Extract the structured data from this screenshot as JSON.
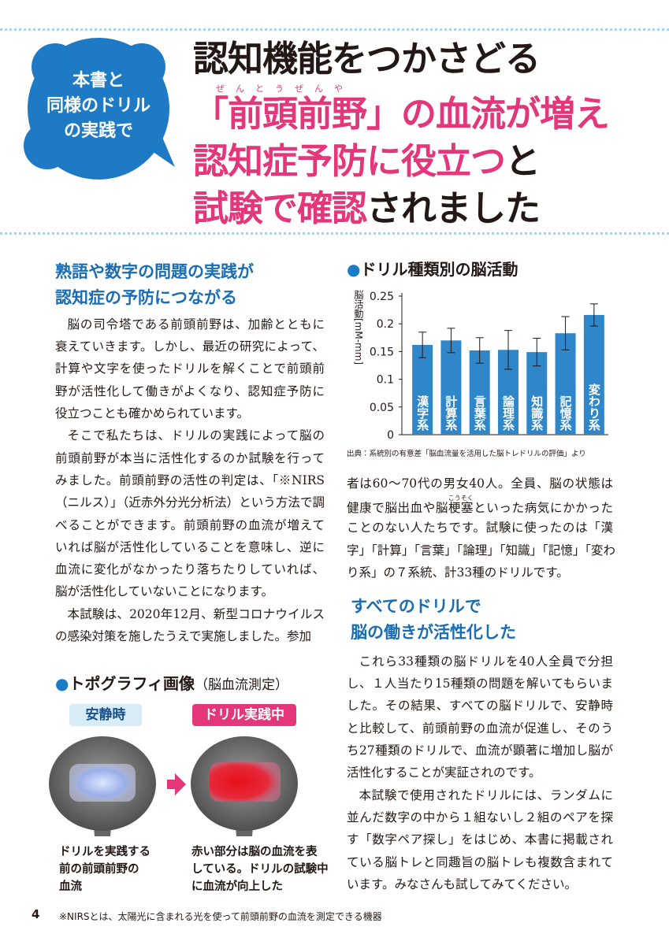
{
  "badge": {
    "lines": [
      "本書と",
      "同様のドリル",
      "の実践で"
    ]
  },
  "title": {
    "lines": [
      [
        {
          "text": "認知機能をつかさどる",
          "color": "#231815"
        }
      ],
      [
        {
          "text": "「前頭前野」の血流が増え",
          "color": "#e4367a"
        }
      ],
      [
        {
          "text": "認知症予防に役立つ",
          "color": "#e4367a"
        },
        {
          "text": "と",
          "color": "#231815"
        }
      ],
      [
        {
          "text": "試験で確認",
          "color": "#e4367a"
        },
        {
          "text": "されました",
          "color": "#231815"
        }
      ]
    ],
    "ruby": "ぜんとうぜんや"
  },
  "section1": {
    "heading": [
      "熟語や数字の問題の実践が",
      "認知症の予防につながる"
    ],
    "paragraphs": [
      [
        "脳の司令塔である前頭前野は、加齢とともに",
        "衰えていきます。しかし、最近の研究によって、",
        "計算や文字を使ったドリルを解くことで前頭前",
        "野が活性化して働きがよくなり、認知症予防に",
        "役立つことも確かめられています。"
      ],
      [
        "そこで私たちは、ドリルの実践によって脳の",
        "前頭前野が本当に活性化するのか試験を行って",
        "みました。前頭前野の活性の判定は、「※NIRS",
        "（ニルス）」（近赤外分光分析法）という方法で調",
        "べることができます。前頭前野の血流が増えて",
        "いれば脳が活性化していることを意味し、逆に",
        "血流に変化がなかったり落ちたりしていれば、",
        "脳が活性化していないことになります。"
      ],
      [
        "本試験は、2020年12月、新型コロナウイルス",
        "の感染対策を施したうえで実施しました。参加"
      ]
    ]
  },
  "chart_data": {
    "type": "bar",
    "title": "●ドリル種類別の脳活動",
    "ylabel": "脳活動[mM-mm]",
    "categories": [
      "漢字系",
      "計算系",
      "言葉系",
      "論理系",
      "知識系",
      "記憶系",
      "変わり系"
    ],
    "values": [
      0.162,
      0.17,
      0.152,
      0.153,
      0.149,
      0.183,
      0.216
    ],
    "errors": [
      0.023,
      0.022,
      0.023,
      0.035,
      0.025,
      0.03,
      0.02
    ],
    "color": "#2f86c8",
    "ylim": [
      0,
      0.25
    ],
    "yticks": [
      0,
      0.05,
      0.1,
      0.15,
      0.2,
      0.25
    ],
    "grid": false,
    "source": "出典：系統別の有意差「脳血流量を活用した脳トレドリルの評価」より"
  },
  "continued": {
    "paragraphs": [
      [
        "者は60～70代の男女40人。全員、脳の状態は",
        [
          "健康で脳出血や脳",
          {
            "base": "梗塞",
            "rt": "こうそく"
          },
          "といった病気にかかった"
        ],
        "ことのない人たちです。試験に使ったのは「漢",
        "字」「計算」「言葉」「論理」「知識」「記憶」「変わ",
        "り系」の７系統、計33種のドリルです。"
      ]
    ]
  },
  "section2": {
    "heading": [
      "すべてのドリルで",
      "脳の働きが活性化した"
    ],
    "paragraphs": [
      [
        "これら33種類の脳ドリルを40人全員で分担",
        "し、１人当たり15種類の問題を解いてもらいま",
        "した。その結果、すべての脳ドリルで、安静時",
        "と比較して、前頭前野の血流が促進し、そのう",
        "ち27種類のドリルで、血流が顕著に増加し脳が",
        "活性化することが実証されのです。"
      ],
      [
        "本試験で使用されたドリルには、ランダムに",
        "並んだ数字の中から１組ないし２組のペアを探",
        "す「数字ペア探し」をはじめ、本書に掲載され",
        "ている脳トレと同趣旨の脳トレも複数含まれて",
        "います。みなさんも試してみてください。"
      ]
    ]
  },
  "topography": {
    "title": "●トポグラフィ画像",
    "subtitle": "（脳血流測定）",
    "labels": [
      "安静時",
      "ドリル実践中"
    ],
    "captions": [
      [
        "ドリルを実践する",
        "前の前頭前野の",
        "血流"
      ],
      [
        "赤い部分は脳の血流を表",
        "している。ドリルの試験中",
        "に血流が向上した"
      ]
    ]
  },
  "footer": {
    "page": "4",
    "note": "※NIRSとは、太陽光に含まれる光を使って前頭前野の血流を測定できる機器"
  }
}
